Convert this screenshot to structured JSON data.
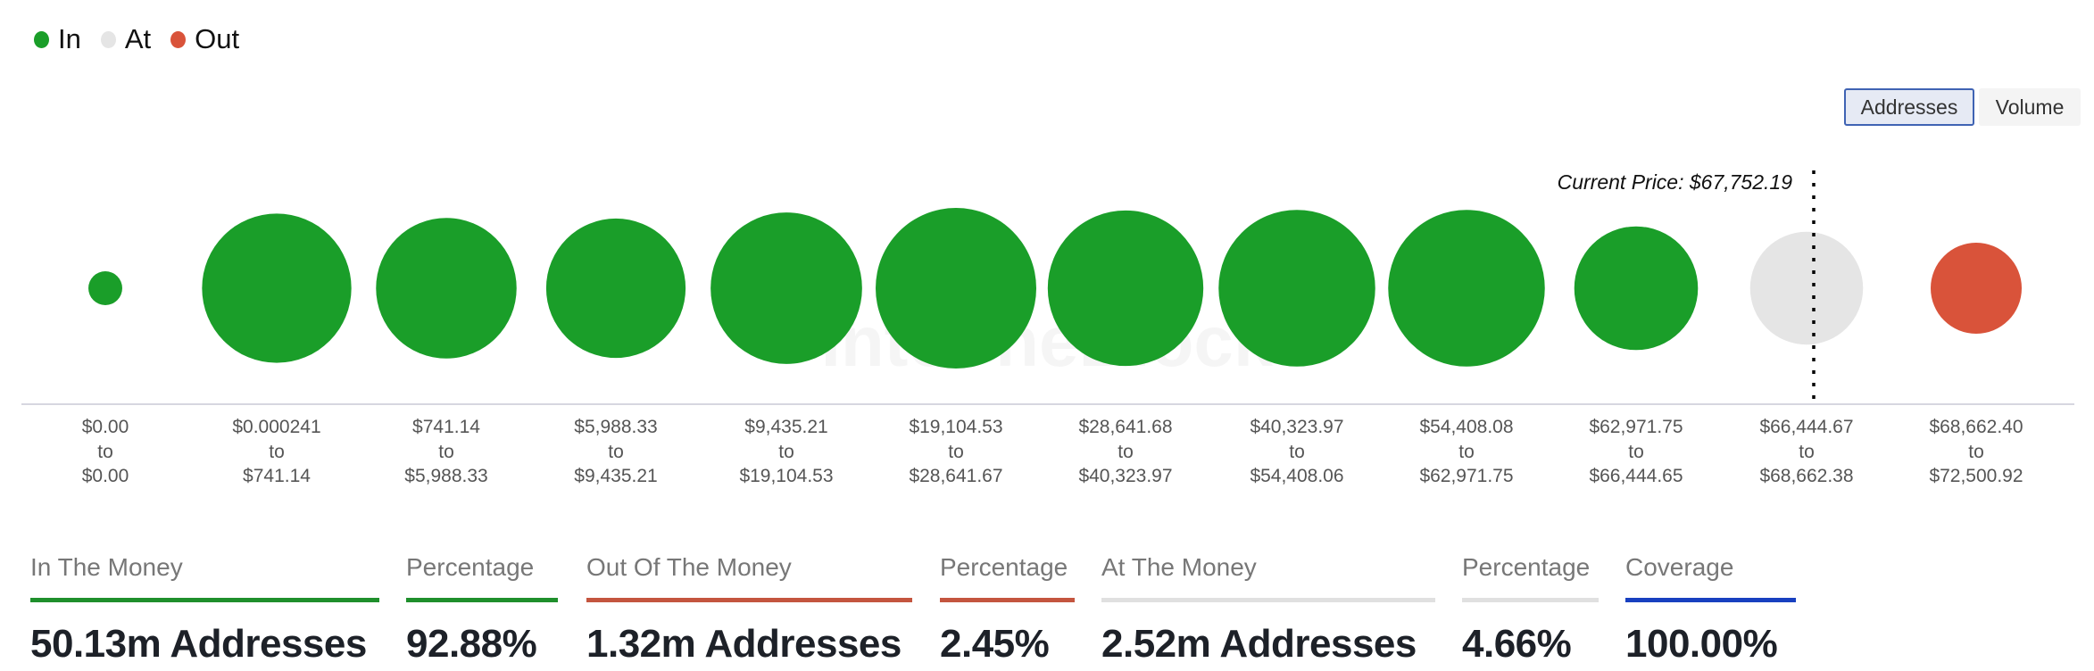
{
  "watermark": "IntoTheBlock",
  "legend": [
    {
      "label": "In",
      "color": "#1a9e29"
    },
    {
      "label": "At",
      "color": "#e5e5e5"
    },
    {
      "label": "Out",
      "color": "#d9533a"
    }
  ],
  "toggle": {
    "addresses_label": "Addresses",
    "volume_label": "Volume",
    "selected": "Addresses"
  },
  "chart_data": {
    "type": "bubble",
    "current_price_label": "Current Price: $67,752.19",
    "current_price_position": "between bucket 11 ranges ($66,444.67 to $68,662.38)",
    "categories": [
      {
        "from": "$0.00",
        "to": "$0.00",
        "status": "In"
      },
      {
        "from": "$0.000241",
        "to": "$741.14",
        "status": "In"
      },
      {
        "from": "$741.14",
        "to": "$5,988.33",
        "status": "In"
      },
      {
        "from": "$5,988.33",
        "to": "$9,435.21",
        "status": "In"
      },
      {
        "from": "$9,435.21",
        "to": "$19,104.53",
        "status": "In"
      },
      {
        "from": "$19,104.53",
        "to": "$28,641.67",
        "status": "In"
      },
      {
        "from": "$28,641.68",
        "to": "$40,323.97",
        "status": "In"
      },
      {
        "from": "$40,323.97",
        "to": "$54,408.06",
        "status": "In"
      },
      {
        "from": "$54,408.08",
        "to": "$62,971.75",
        "status": "In"
      },
      {
        "from": "$62,971.75",
        "to": "$66,444.65",
        "status": "In"
      },
      {
        "from": "$66,444.67",
        "to": "$68,662.38",
        "status": "At"
      },
      {
        "from": "$68,662.40",
        "to": "$72,500.92",
        "status": "Out"
      }
    ],
    "relative_values": [
      3.6,
      70,
      62,
      61,
      72,
      81,
      76,
      77,
      77,
      48,
      40,
      26
    ],
    "to_label": "to"
  },
  "summary": [
    {
      "label": "In The Money",
      "value": "50.13m Addresses",
      "color": "#1f8f2c"
    },
    {
      "label": "Percentage",
      "value": "92.88%",
      "color": "#1f8f2c"
    },
    {
      "label": "Out Of The Money",
      "value": "1.32m Addresses",
      "color": "#c4553f"
    },
    {
      "label": "Percentage",
      "value": "2.45%",
      "color": "#c4553f"
    },
    {
      "label": "At The Money",
      "value": "2.52m Addresses",
      "color": "#e0e0e0"
    },
    {
      "label": "Percentage",
      "value": "4.66%",
      "color": "#e0e0e0"
    },
    {
      "label": "Coverage",
      "value": "100.00%",
      "color": "#1840c0"
    }
  ]
}
